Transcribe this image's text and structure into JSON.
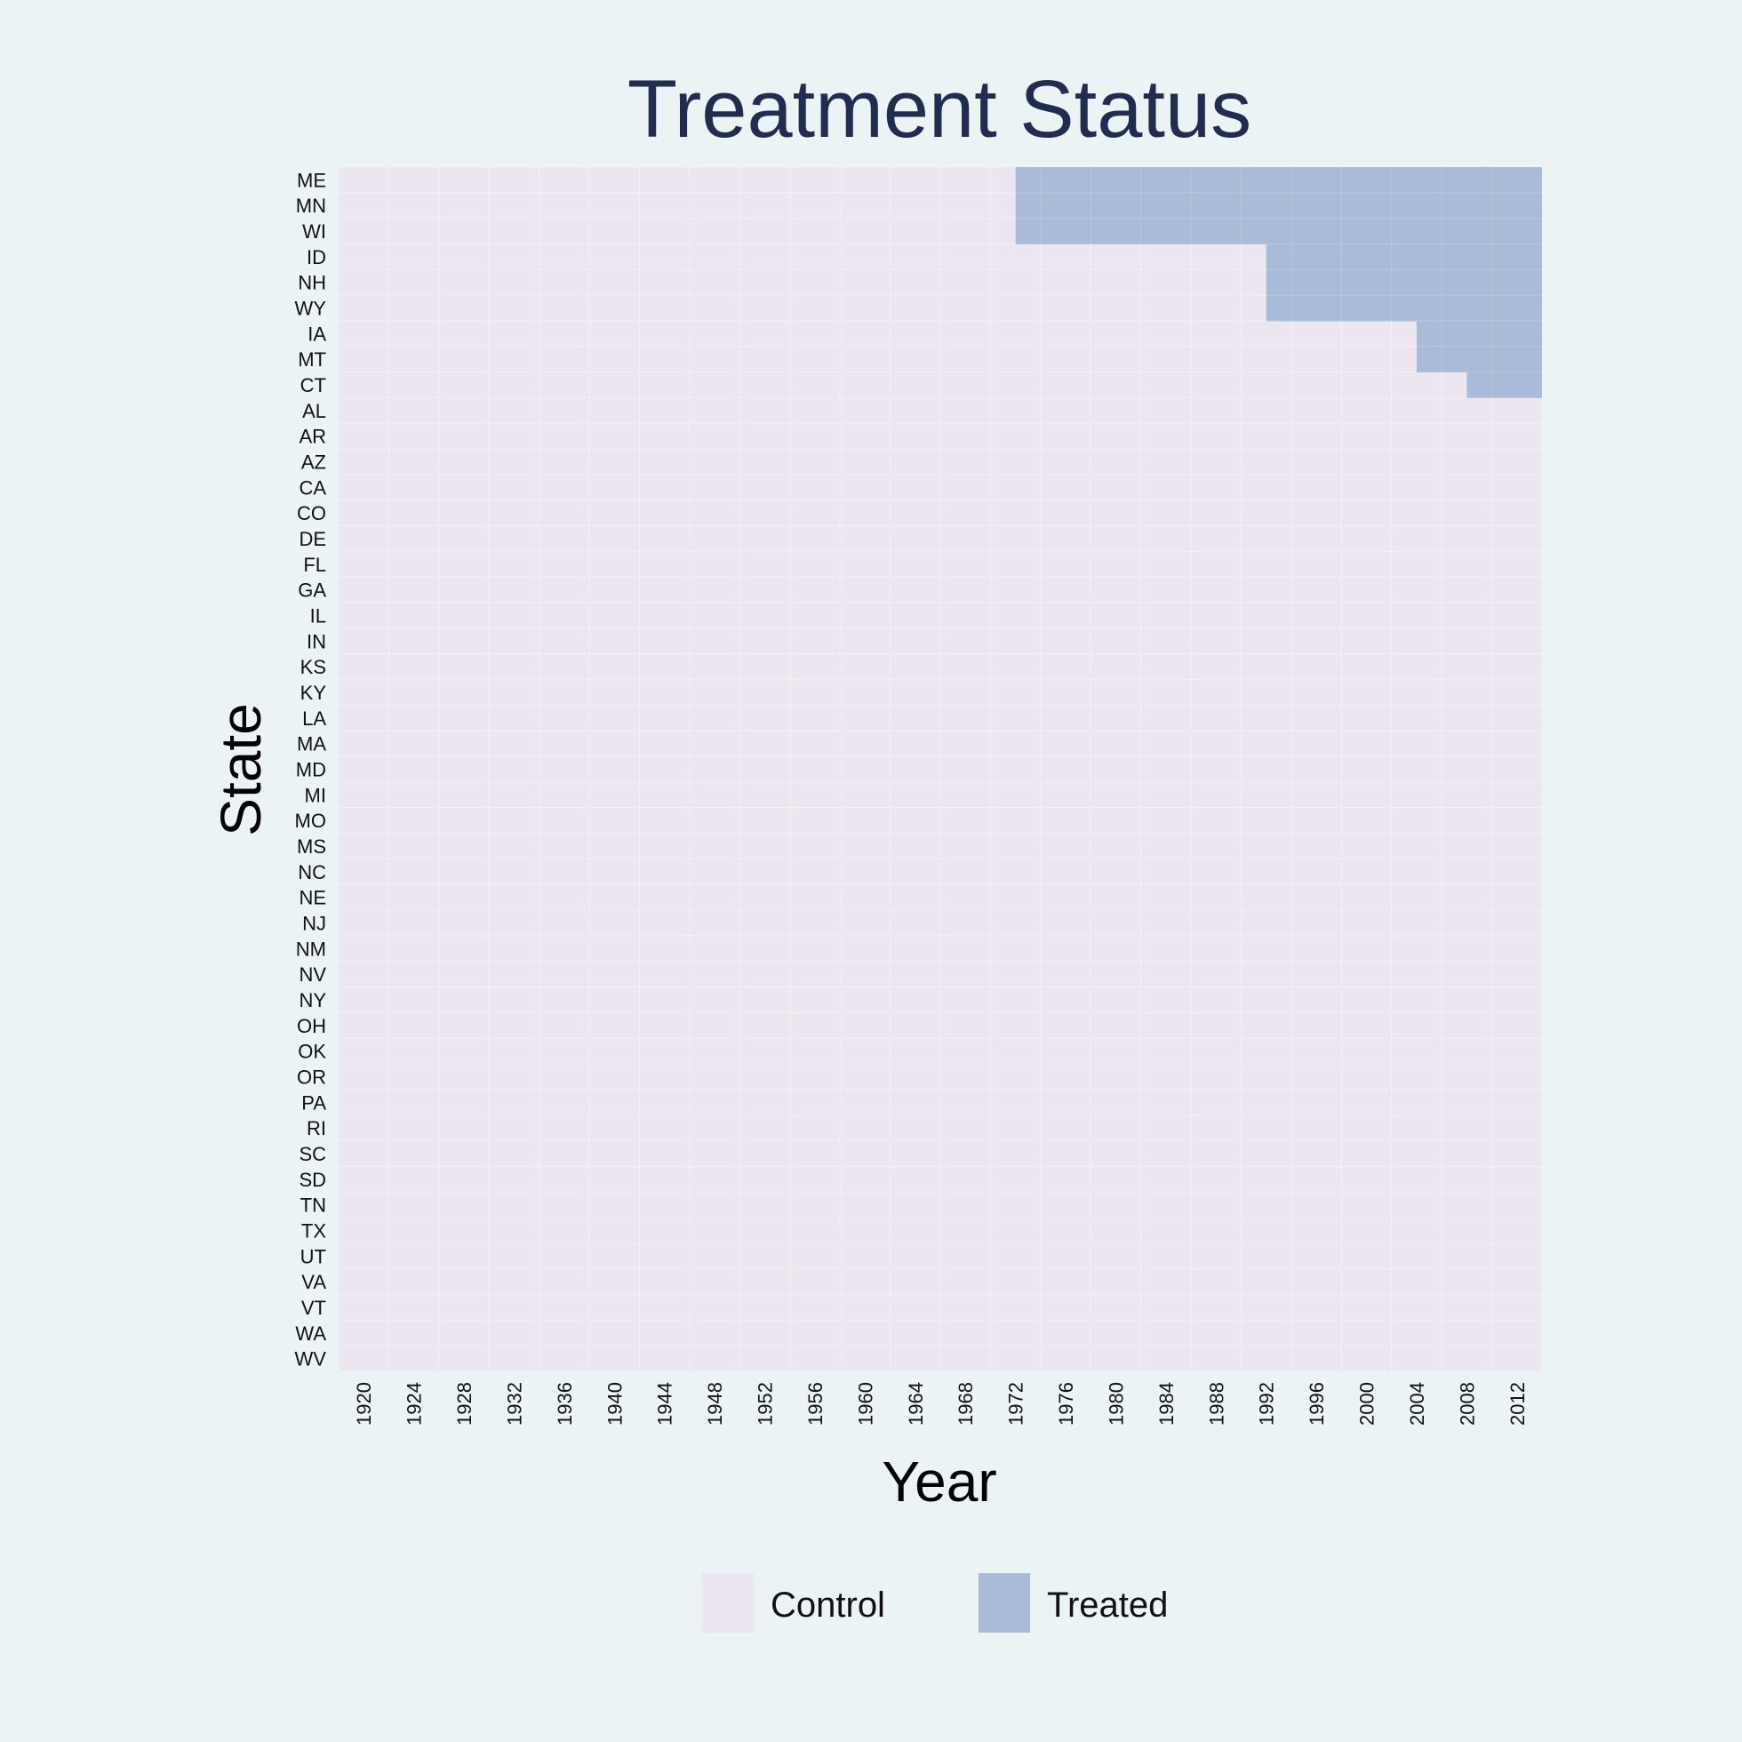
{
  "chart_data": {
    "type": "heatmap",
    "title": "Treatment Status",
    "xlabel": "Year",
    "ylabel": "State",
    "x_tick_labels": [
      "1920",
      "1924",
      "1928",
      "1932",
      "1936",
      "1940",
      "1944",
      "1948",
      "1952",
      "1956",
      "1960",
      "1964",
      "1968",
      "1972",
      "1976",
      "1980",
      "1984",
      "1988",
      "1992",
      "1996",
      "2000",
      "2004",
      "2008",
      "2012"
    ],
    "states": [
      "ME",
      "MN",
      "WI",
      "ID",
      "NH",
      "WY",
      "IA",
      "MT",
      "CT",
      "AL",
      "AR",
      "AZ",
      "CA",
      "CO",
      "DE",
      "FL",
      "GA",
      "IL",
      "IN",
      "KS",
      "KY",
      "LA",
      "MA",
      "MD",
      "MI",
      "MO",
      "MS",
      "NC",
      "NE",
      "NJ",
      "NM",
      "NV",
      "NY",
      "OH",
      "OK",
      "OR",
      "PA",
      "RI",
      "SC",
      "SD",
      "TN",
      "TX",
      "UT",
      "VA",
      "VT",
      "WA",
      "WV"
    ],
    "treatment_start_year": {
      "ME": 1974,
      "MN": 1974,
      "WI": 1974,
      "ID": 1994,
      "NH": 1994,
      "WY": 1994,
      "IA": 2006,
      "MT": 2006,
      "CT": 2010
    },
    "legend": [
      {
        "label": "Control",
        "color": "#ebe6f0"
      },
      {
        "label": "Treated",
        "color": "#aabbd8"
      }
    ],
    "legend_position": "bottom",
    "grid": true
  }
}
